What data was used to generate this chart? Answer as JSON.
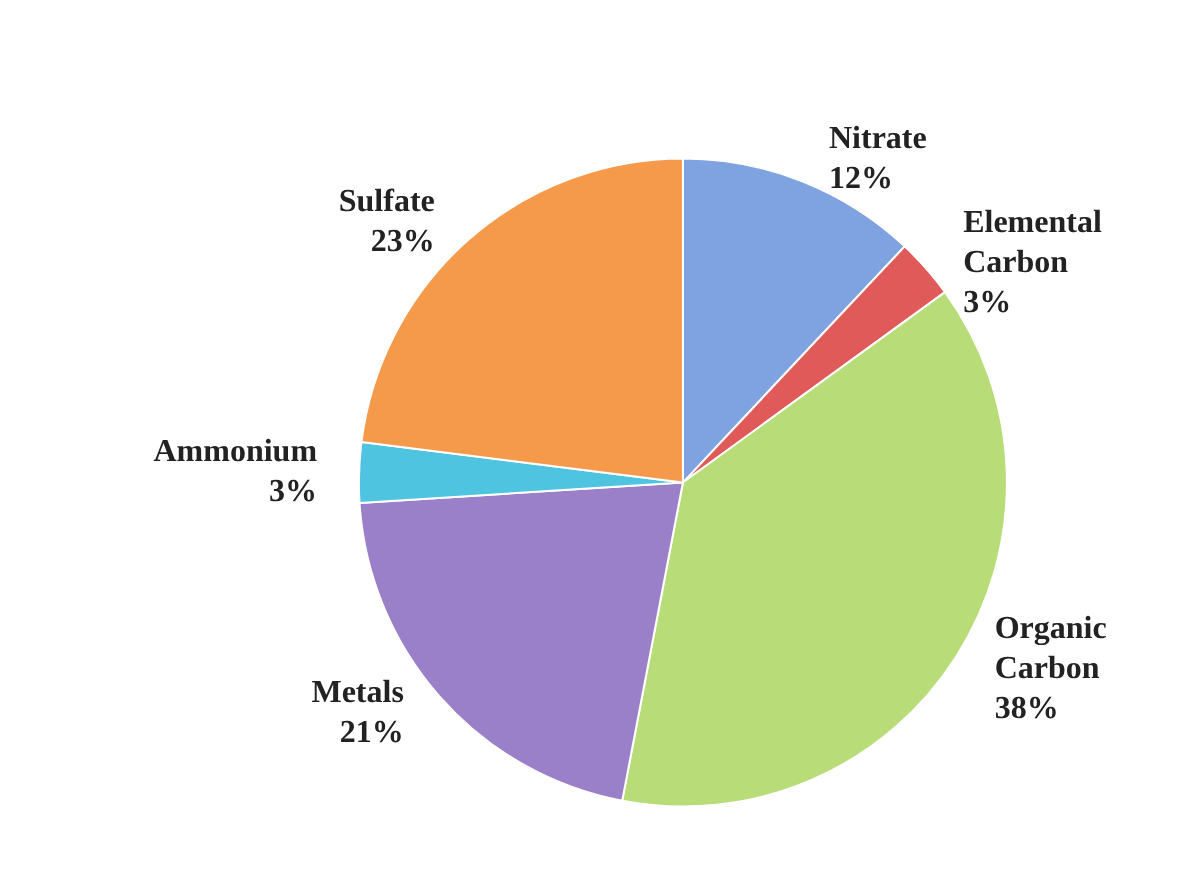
{
  "chart_data": {
    "type": "pie",
    "categories": [
      "Nitrate",
      "Elemental Carbon",
      "Organic Carbon",
      "Metals",
      "Ammonium",
      "Sulfate"
    ],
    "values": [
      12,
      3,
      38,
      21,
      3,
      23
    ],
    "value_labels": [
      "12%",
      "3%",
      "38%",
      "21%",
      "3%",
      "23%"
    ],
    "colors": [
      "#7fa3e0",
      "#e05a5a",
      "#b8dc78",
      "#9a80c8",
      "#4ec4e0",
      "#f59a4a"
    ],
    "legend": false
  }
}
